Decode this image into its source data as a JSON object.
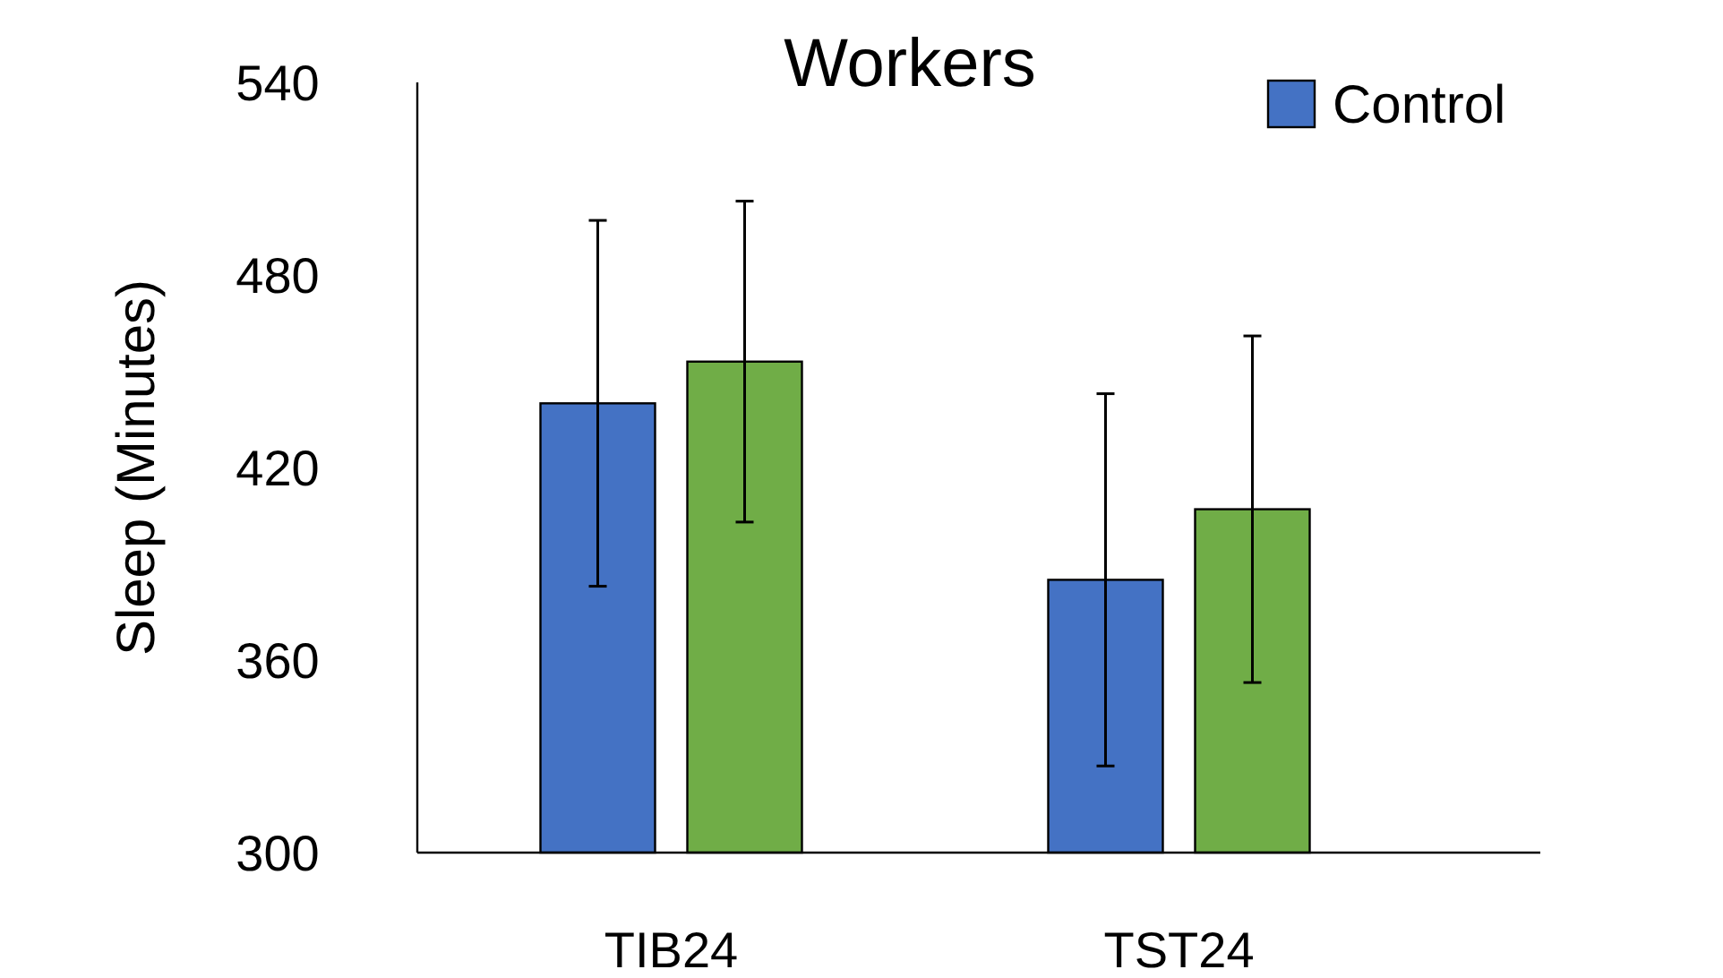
{
  "chart_data": {
    "type": "bar",
    "title": "Workers",
    "ylabel": "Sleep (Minutes)",
    "categories": [
      "TIB24",
      "TST24"
    ],
    "series": [
      {
        "name": "Control",
        "color": "#4472c4",
        "values": [
          440,
          385
        ],
        "errors": [
          57,
          58
        ]
      },
      {
        "color": "#70ad47",
        "values": [
          453,
          407
        ],
        "errors": [
          50,
          54
        ]
      }
    ],
    "ylim": [
      300,
      540
    ],
    "yticks": [
      300,
      360,
      420,
      480,
      540
    ],
    "grid": false,
    "legend": "top right"
  }
}
